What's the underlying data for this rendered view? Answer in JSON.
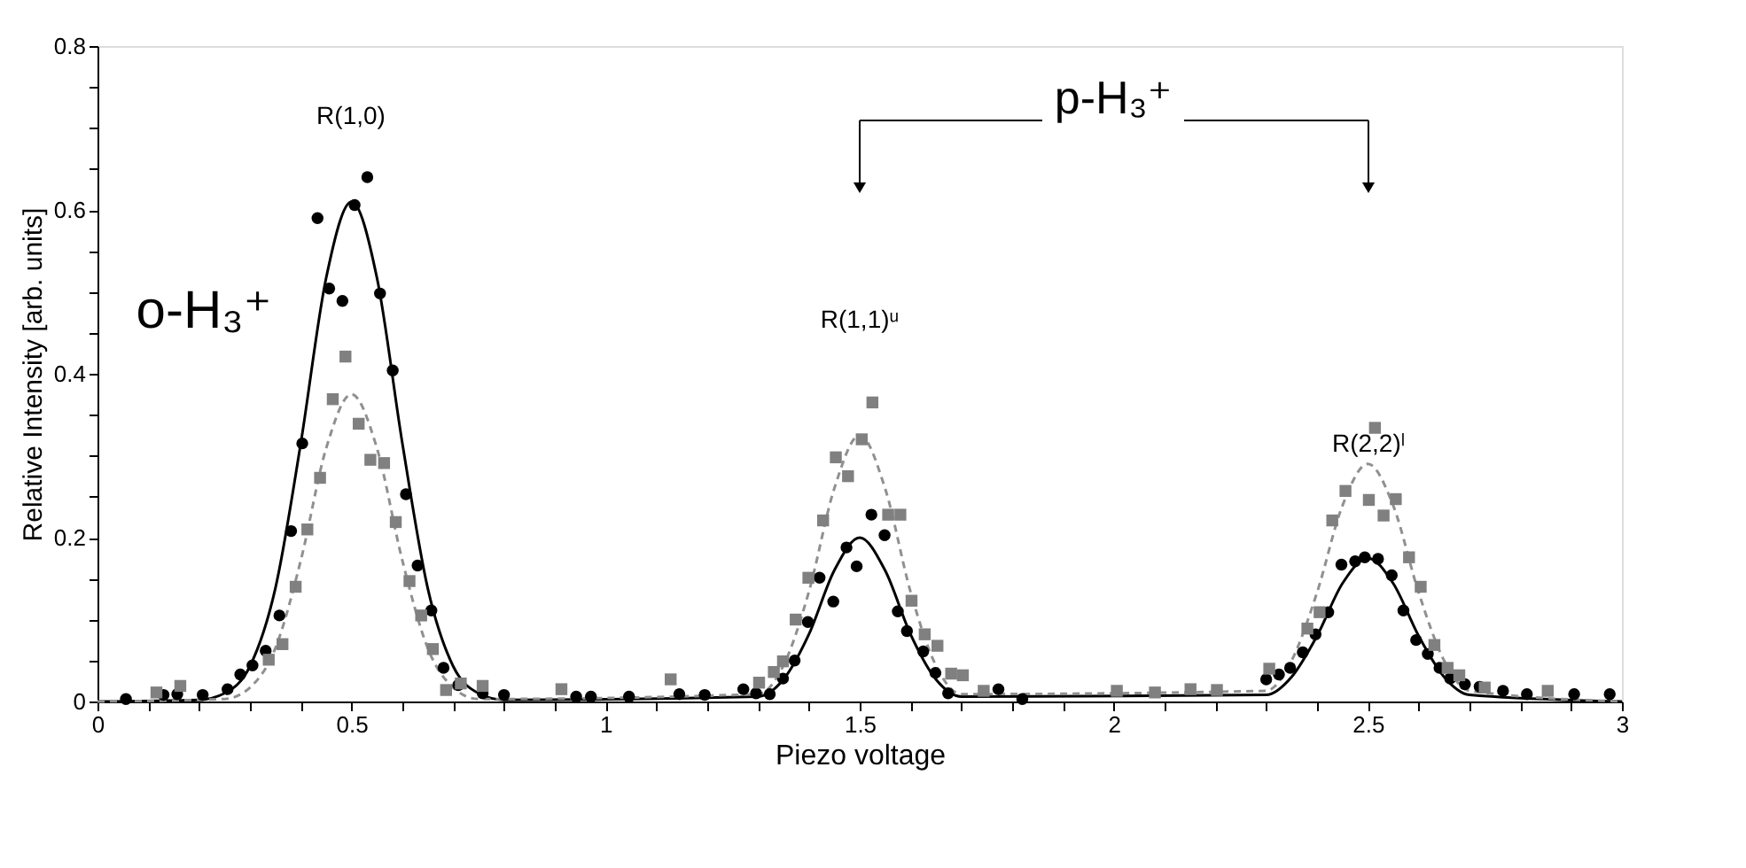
{
  "chart_data": {
    "type": "scatter",
    "xlabel": "Piezo voltage",
    "ylabel": "Relative Intensity [arb. units]",
    "xlim": [
      0,
      3
    ],
    "ylim": [
      0,
      0.8
    ],
    "xticks": [
      0,
      {
        "value": 0.1,
        "label": null
      },
      {
        "value": 0.2,
        "label": null
      },
      {
        "value": 0.3,
        "label": null
      },
      {
        "value": 0.4,
        "label": null
      },
      0.5,
      {
        "value": 0.6,
        "label": null
      },
      {
        "value": 0.7,
        "label": null
      },
      {
        "value": 0.8,
        "label": null
      },
      {
        "value": 0.9,
        "label": null
      },
      1,
      {
        "value": 1.1,
        "label": null
      },
      {
        "value": 1.2,
        "label": null
      },
      {
        "value": 1.3,
        "label": null
      },
      {
        "value": 1.4,
        "label": null
      },
      1.5,
      {
        "value": 1.6,
        "label": null
      },
      {
        "value": 1.7,
        "label": null
      },
      {
        "value": 1.8,
        "label": null
      },
      {
        "value": 1.9,
        "label": null
      },
      2,
      {
        "value": 2.1,
        "label": null
      },
      {
        "value": 2.2,
        "label": null
      },
      {
        "value": 2.3,
        "label": null
      },
      {
        "value": 2.4,
        "label": null
      },
      2.5,
      {
        "value": 2.6,
        "label": null
      },
      {
        "value": 2.7,
        "label": null
      },
      {
        "value": 2.8,
        "label": null
      },
      {
        "value": 2.9,
        "label": null
      },
      3
    ],
    "yticks": [
      0,
      {
        "value": 0.05,
        "label": null
      },
      {
        "value": 0.1,
        "label": null
      },
      {
        "value": 0.15,
        "label": null
      },
      0.2,
      {
        "value": 0.25,
        "label": null
      },
      {
        "value": 0.3,
        "label": null
      },
      {
        "value": 0.35,
        "label": null
      },
      0.4,
      {
        "value": 0.45,
        "label": null
      },
      {
        "value": 0.5,
        "label": null
      },
      {
        "value": 0.55,
        "label": null
      },
      0.6,
      {
        "value": 0.65,
        "label": null
      },
      {
        "value": 0.7,
        "label": null
      },
      {
        "value": 0.75,
        "label": null
      },
      0.8
    ],
    "grid": false,
    "series": [
      {
        "marker": "circle",
        "color": "#000000",
        "x": [
          0.056,
          0.13,
          0.157,
          0.207,
          0.256,
          0.281,
          0.305,
          0.331,
          0.358,
          0.381,
          0.403,
          0.433,
          0.456,
          0.482,
          0.506,
          0.531,
          0.556,
          0.581,
          0.607,
          0.63,
          0.657,
          0.681,
          0.71,
          0.758,
          0.8,
          0.942,
          0.971,
          1.046,
          1.145,
          1.195,
          1.271,
          1.296,
          1.323,
          1.349,
          1.372,
          1.398,
          1.421,
          1.448,
          1.474,
          1.494,
          1.523,
          1.549,
          1.575,
          1.593,
          1.625,
          1.649,
          1.674,
          1.773,
          1.82,
          2.3,
          2.325,
          2.347,
          2.372,
          2.397,
          2.422,
          2.448,
          2.475,
          2.494,
          2.52,
          2.547,
          2.57,
          2.595,
          2.618,
          2.641,
          2.662,
          2.691,
          2.72,
          2.766,
          2.813,
          2.906,
          2.976
        ],
        "values": [
          0.003,
          0.008,
          0.009,
          0.008,
          0.015,
          0.033,
          0.044,
          0.062,
          0.105,
          0.208,
          0.315,
          0.59,
          0.504,
          0.489,
          0.606,
          0.64,
          0.498,
          0.404,
          0.253,
          0.166,
          0.111,
          0.041,
          0.02,
          0.01,
          0.008,
          0.006,
          0.006,
          0.006,
          0.009,
          0.008,
          0.015,
          0.01,
          0.009,
          0.028,
          0.05,
          0.097,
          0.151,
          0.122,
          0.188,
          0.165,
          0.228,
          0.203,
          0.11,
          0.086,
          0.061,
          0.035,
          0.01,
          0.015,
          0.003,
          0.027,
          0.033,
          0.041,
          0.06,
          0.082,
          0.109,
          0.167,
          0.171,
          0.176,
          0.174,
          0.154,
          0.111,
          0.075,
          0.058,
          0.041,
          0.028,
          0.021,
          0.018,
          0.013,
          0.009,
          0.009,
          0.009
        ]
      },
      {
        "marker": "square",
        "color": "#808080",
        "x": [
          0.116,
          0.163,
          0.337,
          0.364,
          0.39,
          0.413,
          0.438,
          0.463,
          0.488,
          0.514,
          0.537,
          0.564,
          0.587,
          0.614,
          0.637,
          0.66,
          0.686,
          0.715,
          0.758,
          0.913,
          1.128,
          1.302,
          1.331,
          1.349,
          1.374,
          1.399,
          1.428,
          1.453,
          1.477,
          1.504,
          1.525,
          1.556,
          1.58,
          1.602,
          1.628,
          1.653,
          1.68,
          1.703,
          1.744,
          2.006,
          2.081,
          2.151,
          2.203,
          2.306,
          2.381,
          2.405,
          2.43,
          2.456,
          2.502,
          2.514,
          2.531,
          2.555,
          2.581,
          2.604,
          2.631,
          2.657,
          2.68,
          2.73,
          2.854
        ],
        "values": [
          0.011,
          0.019,
          0.051,
          0.07,
          0.14,
          0.21,
          0.273,
          0.369,
          0.421,
          0.339,
          0.295,
          0.291,
          0.219,
          0.147,
          0.105,
          0.064,
          0.014,
          0.022,
          0.019,
          0.015,
          0.027,
          0.023,
          0.036,
          0.049,
          0.1,
          0.151,
          0.221,
          0.298,
          0.275,
          0.32,
          0.365,
          0.228,
          0.228,
          0.123,
          0.082,
          0.068,
          0.034,
          0.032,
          0.013,
          0.013,
          0.011,
          0.015,
          0.014,
          0.04,
          0.089,
          0.109,
          0.221,
          0.257,
          0.246,
          0.334,
          0.227,
          0.247,
          0.176,
          0.14,
          0.069,
          0.041,
          0.032,
          0.017,
          0.013
        ]
      },
      {
        "type": "line",
        "line_style": "solid",
        "color": "#000000",
        "x": [
          0,
          0.2,
          0.25,
          0.3,
          0.35,
          0.4,
          0.45,
          0.5,
          0.55,
          0.6,
          0.65,
          0.7,
          0.75,
          0.8,
          1.3,
          1.35,
          1.4,
          1.45,
          1.5,
          1.55,
          1.6,
          1.65,
          1.7,
          2.3,
          2.35,
          2.4,
          2.45,
          2.5,
          2.55,
          2.6,
          2.65,
          2.7,
          3
        ],
        "values": [
          0,
          0.002,
          0.01,
          0.043,
          0.138,
          0.315,
          0.517,
          0.61,
          0.517,
          0.315,
          0.138,
          0.043,
          0.01,
          0.002,
          0.006,
          0.027,
          0.082,
          0.16,
          0.2,
          0.16,
          0.082,
          0.027,
          0.006,
          0.008,
          0.03,
          0.08,
          0.144,
          0.175,
          0.144,
          0.08,
          0.03,
          0.008,
          0
        ]
      },
      {
        "type": "line",
        "line_style": "dashed",
        "color": "#909090",
        "x": [
          0,
          0.25,
          0.3,
          0.35,
          0.4,
          0.45,
          0.5,
          0.55,
          0.6,
          0.65,
          0.7,
          0.75,
          1.3,
          1.35,
          1.4,
          1.45,
          1.5,
          1.55,
          1.6,
          1.65,
          1.7,
          2.3,
          2.35,
          2.4,
          2.45,
          2.5,
          2.55,
          2.6,
          2.65,
          2.7,
          3
        ],
        "values": [
          0,
          0.003,
          0.017,
          0.065,
          0.172,
          0.309,
          0.375,
          0.309,
          0.172,
          0.065,
          0.017,
          0.003,
          0.009,
          0.044,
          0.134,
          0.26,
          0.325,
          0.26,
          0.134,
          0.044,
          0.009,
          0.013,
          0.05,
          0.133,
          0.239,
          0.29,
          0.239,
          0.133,
          0.05,
          0.013,
          0
        ]
      }
    ],
    "annotations": [
      "R(1,0)",
      "o-H₃⁺",
      "R(1,1)ᵘ",
      "R(2,2)ˡ",
      "p-H₃⁺"
    ]
  }
}
